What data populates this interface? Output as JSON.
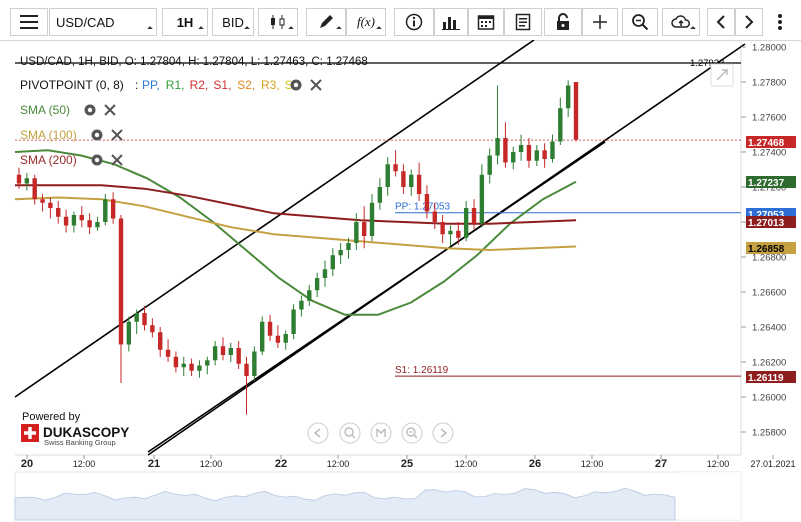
{
  "toolbar": {
    "instrument": "USD/CAD",
    "timeframe": "1H",
    "side": "BID",
    "fx_label": "f(x)"
  },
  "header": {
    "info": "USD/CAD, 1H, BID, O: 1.27804, H: 1.27804, L: 1.27463, C: 1.27468",
    "pivot_label": "PIVOTPOINT (0, 8)",
    "pivot_sep": ":",
    "pivot_items": [
      {
        "text": "PP,",
        "color": "#2e7bd6"
      },
      {
        "text": "R1,",
        "color": "#2e9e3a"
      },
      {
        "text": "R2,",
        "color": "#d62e2e"
      },
      {
        "text": "S1,",
        "color": "#d62e2e"
      },
      {
        "text": "S2,",
        "color": "#e08a1e"
      },
      {
        "text": "R3,",
        "color": "#d6a21e"
      },
      {
        "text": "S3",
        "color": "#d6c21e"
      }
    ],
    "sma": [
      {
        "label": "SMA (50)",
        "color": "#4a8a3a"
      },
      {
        "label": "SMA (100)",
        "color": "#c4a040"
      },
      {
        "label": "SMA (200)",
        "color": "#9a2a2a"
      }
    ]
  },
  "branding": {
    "powered": "Powered by",
    "name": "DUKASCOPY",
    "sub": "Swiss Banking Group"
  },
  "colors": {
    "up": "#2e7d32",
    "down": "#c62828",
    "sma50": "#4a8a3a",
    "sma100": "#c4a040",
    "sma200": "#8e1e1e",
    "pp": "#2e6fd6",
    "s1": "#8e1e1e"
  },
  "chart_data": {
    "type": "candlestick",
    "yticks": [
      "1.28000",
      "1.27800",
      "1.27600",
      "1.27400",
      "1.27200",
      "1.27000",
      "1.26800",
      "1.26600",
      "1.26400",
      "1.26200",
      "1.26000",
      "1.25800"
    ],
    "xticks": [
      {
        "label": "20",
        "bold": true
      },
      {
        "label": "12:00",
        "bold": false
      },
      {
        "label": "21",
        "bold": true
      },
      {
        "label": "12:00",
        "bold": false
      },
      {
        "label": "22",
        "bold": true
      },
      {
        "label": "12:00",
        "bold": false
      },
      {
        "label": "25",
        "bold": true
      },
      {
        "label": "12:00",
        "bold": false
      },
      {
        "label": "26",
        "bold": true
      },
      {
        "label": "12:00",
        "bold": false
      },
      {
        "label": "27",
        "bold": true
      },
      {
        "label": "12:00",
        "bold": false
      },
      {
        "label": "27.01.2021",
        "bold": false
      }
    ],
    "price_labels": [
      {
        "value": "1.27468",
        "bg": "#c62828",
        "color": "#ffffff"
      },
      {
        "value": "1.27237",
        "bg": "#2e6b2e",
        "color": "#ffffff"
      },
      {
        "value": "1.27053",
        "bg": "#2e6fd6",
        "color": "#ffffff"
      },
      {
        "value": "1.27013",
        "bg": "#8e1e1e",
        "color": "#ffffff"
      },
      {
        "value": "1.26858",
        "bg": "#c4a040",
        "color": "#000000"
      },
      {
        "value": "1.26119",
        "bg": "#8e1e1e",
        "color": "#ffffff"
      },
      {
        "value": "1.27923",
        "bg": "",
        "color": "#000000"
      }
    ],
    "levels": [
      {
        "name": "PP",
        "text": "PP: 1.27053",
        "value": 1.27053,
        "color": "#2e6fd6"
      },
      {
        "name": "S1",
        "text": "S1: 1.26119",
        "value": 1.26119,
        "color": "#8e1e1e"
      }
    ],
    "close_price": 1.27468,
    "horizontal_line": 1.27923,
    "candles": [
      [
        1.2727,
        1.2731,
        1.2719,
        1.2722
      ],
      [
        1.2722,
        1.2728,
        1.2718,
        1.2725
      ],
      [
        1.2725,
        1.2727,
        1.271,
        1.2713
      ],
      [
        1.2713,
        1.2716,
        1.2706,
        1.2711
      ],
      [
        1.2711,
        1.2714,
        1.2702,
        1.2708
      ],
      [
        1.2708,
        1.2712,
        1.2699,
        1.2703
      ],
      [
        1.2703,
        1.2707,
        1.2694,
        1.2698
      ],
      [
        1.2698,
        1.2706,
        1.2694,
        1.2704
      ],
      [
        1.2704,
        1.2709,
        1.2697,
        1.2701
      ],
      [
        1.2701,
        1.2705,
        1.2693,
        1.2697
      ],
      [
        1.2697,
        1.2703,
        1.2695,
        1.27
      ],
      [
        1.27,
        1.2716,
        1.2698,
        1.2713
      ],
      [
        1.2713,
        1.2717,
        1.2699,
        1.2702
      ],
      [
        1.2702,
        1.2704,
        1.2608,
        1.263
      ],
      [
        1.263,
        1.2646,
        1.2626,
        1.2643
      ],
      [
        1.2643,
        1.265,
        1.2636,
        1.2648
      ],
      [
        1.2648,
        1.2652,
        1.2638,
        1.2641
      ],
      [
        1.2641,
        1.2645,
        1.2634,
        1.2637
      ],
      [
        1.2637,
        1.264,
        1.2623,
        1.2627
      ],
      [
        1.2627,
        1.2633,
        1.262,
        1.2623
      ],
      [
        1.2623,
        1.2626,
        1.2614,
        1.2617
      ],
      [
        1.2617,
        1.2623,
        1.2612,
        1.2619
      ],
      [
        1.2619,
        1.2622,
        1.2612,
        1.2615
      ],
      [
        1.2615,
        1.2621,
        1.2611,
        1.2618
      ],
      [
        1.2618,
        1.2623,
        1.2613,
        1.2621
      ],
      [
        1.2621,
        1.2632,
        1.2618,
        1.2629
      ],
      [
        1.2629,
        1.2634,
        1.2621,
        1.2624
      ],
      [
        1.2624,
        1.2631,
        1.262,
        1.2628
      ],
      [
        1.2628,
        1.2632,
        1.2616,
        1.2619
      ],
      [
        1.2619,
        1.2623,
        1.259,
        1.2612
      ],
      [
        1.2612,
        1.2629,
        1.2609,
        1.2626
      ],
      [
        1.2626,
        1.2646,
        1.2624,
        1.2643
      ],
      [
        1.2643,
        1.2647,
        1.2632,
        1.2635
      ],
      [
        1.2635,
        1.2641,
        1.2628,
        1.2631
      ],
      [
        1.2631,
        1.2638,
        1.2627,
        1.2636
      ],
      [
        1.2636,
        1.2653,
        1.2633,
        1.265
      ],
      [
        1.265,
        1.2658,
        1.2646,
        1.2655
      ],
      [
        1.2655,
        1.2664,
        1.2652,
        1.2661
      ],
      [
        1.2661,
        1.2671,
        1.2657,
        1.2668
      ],
      [
        1.2668,
        1.2678,
        1.2663,
        1.2673
      ],
      [
        1.2673,
        1.2685,
        1.2669,
        1.2681
      ],
      [
        1.2681,
        1.2688,
        1.2676,
        1.2684
      ],
      [
        1.2684,
        1.2691,
        1.2679,
        1.2688
      ],
      [
        1.2688,
        1.2705,
        1.2684,
        1.27
      ],
      [
        1.27,
        1.2709,
        1.2685,
        1.2692
      ],
      [
        1.2692,
        1.2716,
        1.2689,
        1.2711
      ],
      [
        1.2711,
        1.2725,
        1.2707,
        1.272
      ],
      [
        1.272,
        1.2737,
        1.2715,
        1.2733
      ],
      [
        1.2733,
        1.2741,
        1.2726,
        1.2729
      ],
      [
        1.2729,
        1.2733,
        1.2716,
        1.272
      ],
      [
        1.272,
        1.273,
        1.2715,
        1.2727
      ],
      [
        1.2727,
        1.2734,
        1.2712,
        1.2716
      ],
      [
        1.2716,
        1.2721,
        1.2702,
        1.2706
      ],
      [
        1.2706,
        1.2711,
        1.2696,
        1.27
      ],
      [
        1.27,
        1.2704,
        1.2688,
        1.2693
      ],
      [
        1.2693,
        1.2698,
        1.2686,
        1.2695
      ],
      [
        1.2695,
        1.27,
        1.2687,
        1.2691
      ],
      [
        1.2691,
        1.2712,
        1.2689,
        1.2708
      ],
      [
        1.2708,
        1.2713,
        1.2696,
        1.2699
      ],
      [
        1.2699,
        1.2733,
        1.2697,
        1.2727
      ],
      [
        1.2727,
        1.2742,
        1.2722,
        1.2738
      ],
      [
        1.2738,
        1.2778,
        1.2733,
        1.2748
      ],
      [
        1.2748,
        1.2757,
        1.2731,
        1.2734
      ],
      [
        1.2734,
        1.2743,
        1.273,
        1.274
      ],
      [
        1.274,
        1.275,
        1.2735,
        1.2744
      ],
      [
        1.2744,
        1.2748,
        1.2731,
        1.2735
      ],
      [
        1.2735,
        1.2744,
        1.2732,
        1.2741
      ],
      [
        1.2741,
        1.2745,
        1.2731,
        1.2736
      ],
      [
        1.2736,
        1.275,
        1.2734,
        1.2746
      ],
      [
        1.2746,
        1.2771,
        1.2744,
        1.2765
      ],
      [
        1.2765,
        1.2781,
        1.276,
        1.2778
      ],
      [
        1.278,
        1.278,
        1.2746,
        1.2747
      ]
    ],
    "sma50": [
      [
        1.274,
        1.2741,
        1.2738,
        1.2733,
        1.2725,
        1.2714,
        1.27,
        1.2684,
        1.2668,
        1.2655,
        1.2647,
        1.2647,
        1.2654,
        1.2666,
        1.2681,
        1.2699,
        1.2713,
        1.2723
      ]
    ],
    "sma100": [
      [
        1.2713,
        1.2714,
        1.2713,
        1.2709,
        1.2703,
        1.2697,
        1.2693,
        1.2691,
        1.2689,
        1.2687,
        1.2685,
        1.2684,
        1.2685,
        1.2686
      ]
    ],
    "sma200": [
      [
        1.2721,
        1.2721,
        1.2721,
        1.2719,
        1.2715,
        1.271,
        1.2705,
        1.2703,
        1.2701,
        1.27,
        1.2699,
        1.2699,
        1.27,
        1.2701
      ]
    ]
  }
}
